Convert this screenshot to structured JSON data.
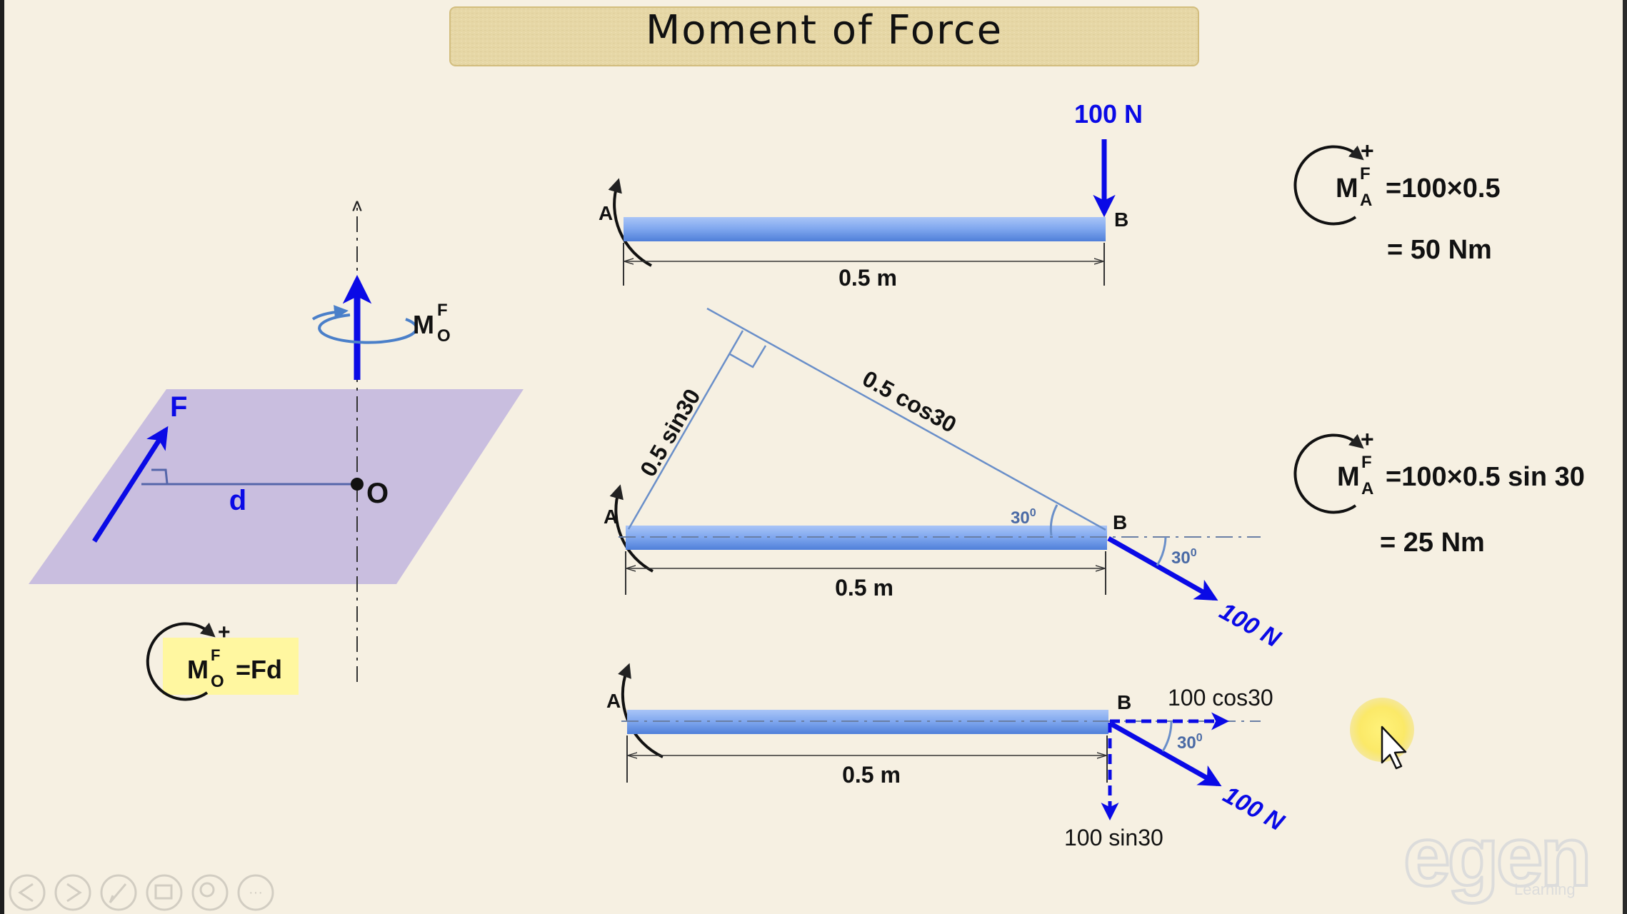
{
  "slide": {
    "title": "Moment of Force",
    "colors": {
      "background": "#f6f0e2",
      "title_bar": "#e8d9a8",
      "force_blue": "#0a0ae6",
      "beam_blue": "#7fa8ee",
      "plane_lavender": "#c9bedf",
      "highlight_yellow": "#fff7a0"
    }
  },
  "left_diagram": {
    "force_label": "F",
    "distance_label": "d",
    "point_label": "O",
    "moment_symbol": "M",
    "moment_superscript": "F",
    "moment_subscript": "O",
    "formula": {
      "sign": "+",
      "symbol": "M",
      "superscript": "F",
      "subscript": "O",
      "rhs": "=Fd"
    }
  },
  "beam1": {
    "point_a": "A",
    "point_b": "B",
    "force_label": "100 N",
    "length_label": "0.5 m"
  },
  "beam2": {
    "point_a": "A",
    "point_b": "B",
    "length_label": "0.5 m",
    "perp_label": "0.5 sin30",
    "hyp_label": "0.5 cos30",
    "angle_label_1": "30",
    "angle_label_2": "30",
    "degree_mark": "0",
    "force_label": "100 N"
  },
  "beam3": {
    "point_a": "A",
    "point_b": "B",
    "length_label": "0.5 m",
    "horizontal_component": "100 cos30",
    "vertical_component": "100 sin30",
    "angle_label": "30",
    "degree_mark": "0",
    "force_label": "100 N"
  },
  "equation1": {
    "sign": "+",
    "symbol": "M",
    "superscript": "F",
    "subscript": "A",
    "rhs": "=100×0.5",
    "result": "= 50 Nm"
  },
  "equation2": {
    "sign": "+",
    "symbol": "M",
    "superscript": "F",
    "subscript": "A",
    "rhs": "=100×0.5 sin 30",
    "result": "= 25 Nm"
  },
  "watermark": {
    "logo_text": "egen",
    "sub_text": "Learning"
  },
  "toolbar": {
    "buttons": [
      "previous-icon",
      "next-icon",
      "pen-icon",
      "slides-icon",
      "zoom-icon",
      "more-icon"
    ]
  }
}
